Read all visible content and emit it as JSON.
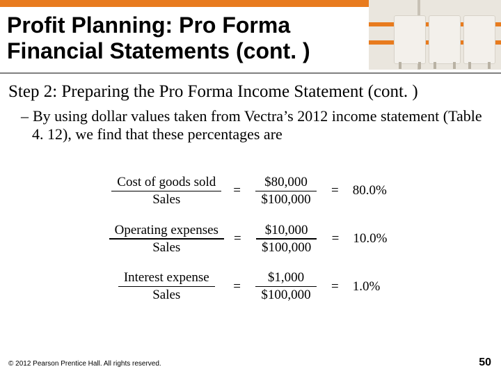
{
  "colors": {
    "accent_orange": "#e87b1e",
    "header_rule": "#808080",
    "text": "#000000",
    "background": "#ffffff",
    "decor_bg": "#eae6de"
  },
  "typography": {
    "title_font": "Arial",
    "title_size_pt": 32,
    "title_weight": 700,
    "body_font": "Times New Roman",
    "step_size_pt": 25,
    "bullet_size_pt": 22,
    "equation_size_pt": 19,
    "footer_size_pt": 10,
    "page_num_size_pt": 16
  },
  "header": {
    "title": "Profit Planning: Pro Forma Financial Statements (cont. )"
  },
  "body": {
    "step": "Step 2: Preparing the Pro Forma Income Statement (cont. )",
    "bullet_dash": "–",
    "bullet": "By using dollar values taken from Vectra’s 2012 income statement (Table 4. 12), we find that these percentages are"
  },
  "equations": {
    "type": "ratio-equations",
    "rows": [
      {
        "lhs_num": "Cost of goods sold",
        "lhs_den": "Sales",
        "mid_num": "$80,000",
        "mid_den": "$100,000",
        "result": "80.0%"
      },
      {
        "lhs_num": "Operating expenses",
        "lhs_den": "Sales",
        "mid_num": "$10,000",
        "mid_den": "$100,000",
        "result": "10.0%"
      },
      {
        "lhs_num": "Interest expense",
        "lhs_den": "Sales",
        "mid_num": "$1,000",
        "mid_den": "$100,000",
        "result": "1.0%"
      }
    ],
    "equals_sign": "="
  },
  "footer": {
    "copyright": "© 2012 Pearson Prentice Hall. All rights reserved.",
    "page_number": "50"
  }
}
